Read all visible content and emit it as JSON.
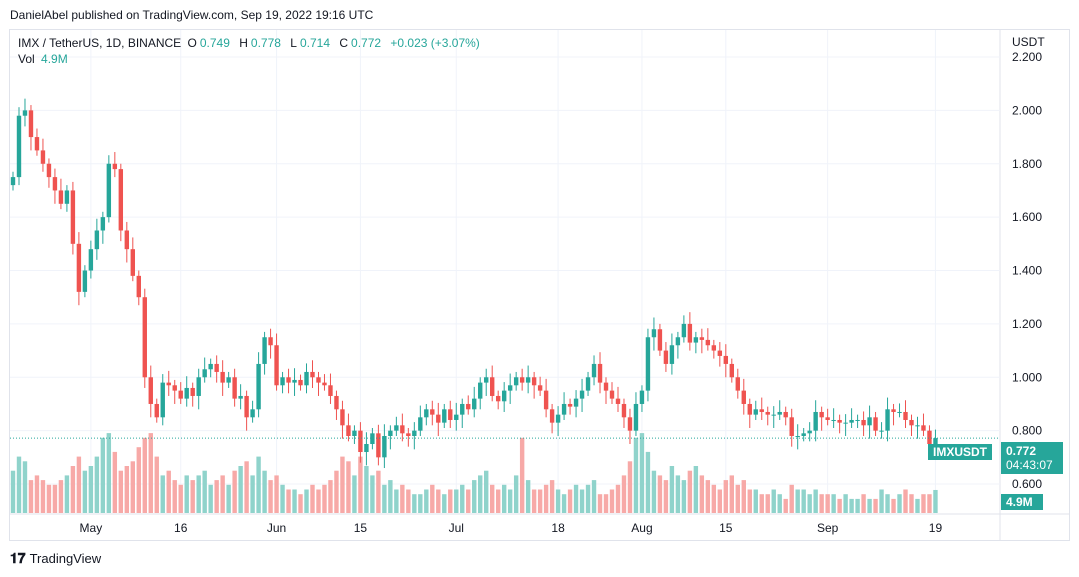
{
  "header": "DanielAbel published on TradingView.com, Sep 19, 2022 19:16 UTC",
  "legend": {
    "symbol": "IMX / TetherUS, 1D, BINANCE",
    "o_label": "O",
    "o": "0.749",
    "h_label": "H",
    "h": "0.778",
    "l_label": "L",
    "l": "0.714",
    "c_label": "C",
    "c": "0.772",
    "change": "+0.023 (+3.07%)",
    "vol_label": "Vol",
    "vol": "4.9M"
  },
  "axis_currency": "USDT",
  "symbol_tag": "IMXUSDT",
  "price_tag": "0.772",
  "countdown": "04:43:07",
  "vol_tag": "4.9M",
  "brand": "TradingView",
  "colors": {
    "up": "#26a69a",
    "down": "#ef5350",
    "vol_up": "#8fd3cb",
    "vol_down": "#f7a9a7"
  },
  "chart_data": {
    "type": "candlestick",
    "ylim": [
      0.6,
      2.2
    ],
    "yticks": [
      "2.200",
      "2.000",
      "1.800",
      "1.600",
      "1.400",
      "1.200",
      "1.000",
      "0.800",
      "0.600"
    ],
    "xticks": [
      {
        "label": "May",
        "day": 13
      },
      {
        "label": "16",
        "day": 28
      },
      {
        "label": "Jun",
        "day": 44
      },
      {
        "label": "15",
        "day": 58
      },
      {
        "label": "Jul",
        "day": 74
      },
      {
        "label": "18",
        "day": 91
      },
      {
        "label": "Aug",
        "day": 105
      },
      {
        "label": "15",
        "day": 119
      },
      {
        "label": "Sep",
        "day": 136
      },
      {
        "label": "19",
        "day": 154
      }
    ],
    "first_open": 1.72,
    "closes": [
      1.75,
      1.98,
      2.0,
      1.9,
      1.85,
      1.8,
      1.75,
      1.7,
      1.65,
      1.7,
      1.5,
      1.32,
      1.4,
      1.48,
      1.55,
      1.6,
      1.8,
      1.78,
      1.55,
      1.48,
      1.38,
      1.3,
      1.0,
      0.9,
      0.85,
      0.98,
      0.97,
      0.95,
      0.92,
      0.96,
      0.93,
      1.0,
      1.03,
      1.05,
      1.02,
      0.98,
      1.0,
      0.92,
      0.93,
      0.85,
      0.88,
      1.05,
      1.15,
      1.12,
      0.97,
      1.0,
      0.98,
      0.99,
      0.97,
      1.02,
      1.0,
      0.98,
      0.97,
      0.93,
      0.88,
      0.82,
      0.78,
      0.8,
      0.72,
      0.75,
      0.79,
      0.7,
      0.78,
      0.8,
      0.82,
      0.79,
      0.78,
      0.8,
      0.85,
      0.88,
      0.86,
      0.83,
      0.88,
      0.84,
      0.86,
      0.9,
      0.88,
      0.92,
      0.98,
      1.0,
      0.93,
      0.91,
      0.95,
      0.97,
      1.0,
      0.98,
      1.0,
      0.97,
      0.95,
      0.88,
      0.83,
      0.86,
      0.9,
      0.89,
      0.92,
      0.95,
      1.0,
      1.05,
      0.98,
      0.95,
      0.92,
      0.9,
      0.85,
      0.8,
      0.9,
      0.95,
      1.15,
      1.18,
      1.1,
      1.05,
      1.12,
      1.15,
      1.2,
      1.13,
      1.15,
      1.14,
      1.12,
      1.1,
      1.08,
      1.05,
      1.0,
      0.95,
      0.9,
      0.86,
      0.88,
      0.87,
      0.86,
      0.86,
      0.87,
      0.85,
      0.78,
      0.78,
      0.79,
      0.8,
      0.87,
      0.85,
      0.84,
      0.84,
      0.83,
      0.83,
      0.84,
      0.84,
      0.82,
      0.85,
      0.8,
      0.8,
      0.88,
      0.87,
      0.87,
      0.84,
      0.82,
      0.82,
      0.8,
      0.75,
      0.772
    ],
    "volumes_m": [
      9,
      12,
      11,
      7,
      8,
      7,
      6,
      6,
      7,
      8,
      10,
      12,
      9,
      10,
      12,
      16,
      17,
      13,
      9,
      10,
      11,
      14,
      16,
      17,
      12,
      8,
      9,
      7,
      6,
      8,
      7,
      8,
      9,
      6,
      7,
      8,
      6,
      9,
      10,
      11,
      8,
      12,
      9,
      7,
      8,
      6,
      5,
      5,
      4,
      5,
      6,
      5,
      6,
      7,
      9,
      12,
      11,
      8,
      12,
      10,
      8,
      9,
      6,
      7,
      5,
      6,
      5,
      4,
      4,
      5,
      6,
      5,
      4,
      5,
      5,
      6,
      5,
      7,
      8,
      9,
      6,
      5,
      6,
      5,
      8,
      16,
      7,
      5,
      5,
      6,
      7,
      5,
      4,
      5,
      6,
      5,
      6,
      7,
      4,
      4,
      5,
      6,
      8,
      11,
      16,
      17,
      13,
      9,
      8,
      7,
      10,
      8,
      7,
      9,
      10,
      8,
      7,
      6,
      5,
      7,
      8,
      6,
      7,
      5,
      5,
      4,
      4,
      5,
      4,
      3,
      6,
      5,
      5,
      4,
      5,
      4,
      4,
      4,
      3,
      4,
      3,
      3,
      4,
      3,
      3,
      5,
      4,
      3,
      4,
      5,
      4,
      3,
      4,
      4,
      4.9
    ]
  }
}
